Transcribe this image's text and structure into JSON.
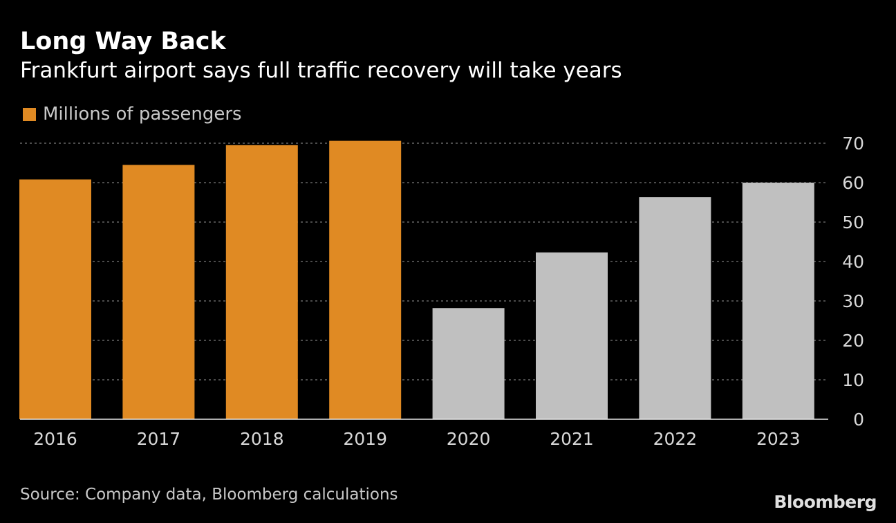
{
  "title": "Long Way Back",
  "subtitle": "Frankfurt airport says full traffic recovery will take years",
  "legend": {
    "label": "Millions of passengers"
  },
  "source": "Source: Company data, Bloomberg calculations",
  "brand": "Bloomberg",
  "colors": {
    "actual": "#e08a23",
    "forecast": "#c0c0c0",
    "background": "#000000",
    "grid": "#7a7a7a"
  },
  "chart_data": {
    "type": "bar",
    "title": "Long Way Back",
    "subtitle": "Frankfurt airport says full traffic recovery will take years",
    "xlabel": "",
    "ylabel": "Millions of passengers",
    "categories": [
      "2016",
      "2017",
      "2018",
      "2019",
      "2020",
      "2021",
      "2022",
      "2023"
    ],
    "values": [
      60.8,
      64.5,
      69.5,
      70.6,
      28.2,
      42.3,
      56.3,
      60.0
    ],
    "series_type": [
      "actual",
      "actual",
      "actual",
      "actual",
      "forecast",
      "forecast",
      "forecast",
      "forecast"
    ],
    "ylim": [
      0,
      70
    ],
    "yticks": [
      0,
      10,
      20,
      30,
      40,
      50,
      60,
      70
    ],
    "y_axis_position": "right",
    "grid": true,
    "legend_position": "top-left"
  }
}
